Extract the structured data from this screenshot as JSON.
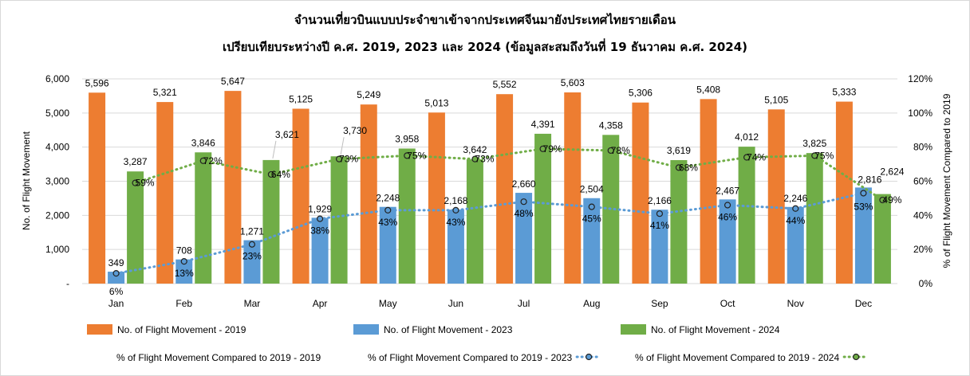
{
  "chart_data": {
    "type": "bar",
    "title": "จำนวนเที่ยวบินแบบประจำขาเข้าจากประเทศจีนมายังประเทศไทยรายเดือน",
    "subtitle": "เปรียบเทียบระหว่างปี ค.ศ. 2019, 2023 และ 2024 (ข้อมูลสะสมถึงวันที่ 19 ธันวาคม ค.ศ. 2024)",
    "ylabel": "No. of Flight Movement",
    "y2label": "% of Flight Movement Compared to 2019",
    "ylim": [
      0,
      6000
    ],
    "y2lim": [
      0,
      1.2
    ],
    "y_ticks": [
      "-",
      "1,000",
      "2,000",
      "3,000",
      "4,000",
      "5,000",
      "6,000"
    ],
    "y2_ticks": [
      "0%",
      "20%",
      "40%",
      "60%",
      "80%",
      "100%",
      "120%"
    ],
    "grid": true,
    "legend_position": "bottom",
    "categories": [
      "Jan",
      "Feb",
      "Mar",
      "Apr",
      "May",
      "Jun",
      "Jul",
      "Aug",
      "Sep",
      "Oct",
      "Nov",
      "Dec"
    ],
    "series": [
      {
        "name": "No. of Flight Movement - 2019",
        "color": "#ED7D31",
        "values": [
          5596,
          5321,
          5647,
          5125,
          5249,
          5013,
          5552,
          5603,
          5306,
          5408,
          5105,
          5333
        ],
        "labels": [
          "5,596",
          "5,321",
          "5,647",
          "5,125",
          "5,249",
          "5,013",
          "5,552",
          "5,603",
          "5,306",
          "5,408",
          "5,105",
          "5,333"
        ]
      },
      {
        "name": "No. of Flight Movement - 2023",
        "color": "#5B9BD5",
        "values": [
          349,
          708,
          1271,
          1929,
          2248,
          2168,
          2660,
          2504,
          2166,
          2467,
          2246,
          2816
        ],
        "labels": [
          "349",
          "708",
          "1,271",
          "1,929",
          "2,248",
          "2,168",
          "2,660",
          "2,504",
          "2,166",
          "2,467",
          "2,246",
          "2,816"
        ]
      },
      {
        "name": "No. of Flight Movement - 2024",
        "color": "#70AD47",
        "values": [
          3287,
          3846,
          3621,
          3730,
          3958,
          3642,
          4391,
          4358,
          3619,
          4012,
          3825,
          2624
        ],
        "labels": [
          "3,287",
          "3,846",
          "3,621",
          "3,730",
          "3,958",
          "3,642",
          "4,391",
          "4,358",
          "3,619",
          "4,012",
          "3,825",
          "2,624"
        ]
      }
    ],
    "pct_series": [
      {
        "name": "% of Flight Movement Compared to 2019 - 2019",
        "color": "#ED7D31",
        "values": [],
        "labels": []
      },
      {
        "name": "% of Flight Movement Compared to 2019 - 2023",
        "color": "#5B9BD5",
        "values": [
          0.06,
          0.13,
          0.23,
          0.38,
          0.43,
          0.43,
          0.48,
          0.45,
          0.41,
          0.46,
          0.44,
          0.53
        ],
        "labels": [
          "6%",
          "13%",
          "23%",
          "38%",
          "43%",
          "43%",
          "48%",
          "45%",
          "41%",
          "46%",
          "44%",
          "53%"
        ]
      },
      {
        "name": "% of Flight Movement Compared to 2019 - 2024",
        "color": "#70AD47",
        "values": [
          0.59,
          0.72,
          0.64,
          0.73,
          0.75,
          0.73,
          0.79,
          0.78,
          0.68,
          0.74,
          0.75,
          0.49
        ],
        "labels": [
          "59%",
          "72%",
          "64%",
          "73%",
          "75%",
          "73%",
          "79%",
          "78%",
          "68%",
          "74%",
          "75%",
          "49%"
        ]
      }
    ]
  }
}
